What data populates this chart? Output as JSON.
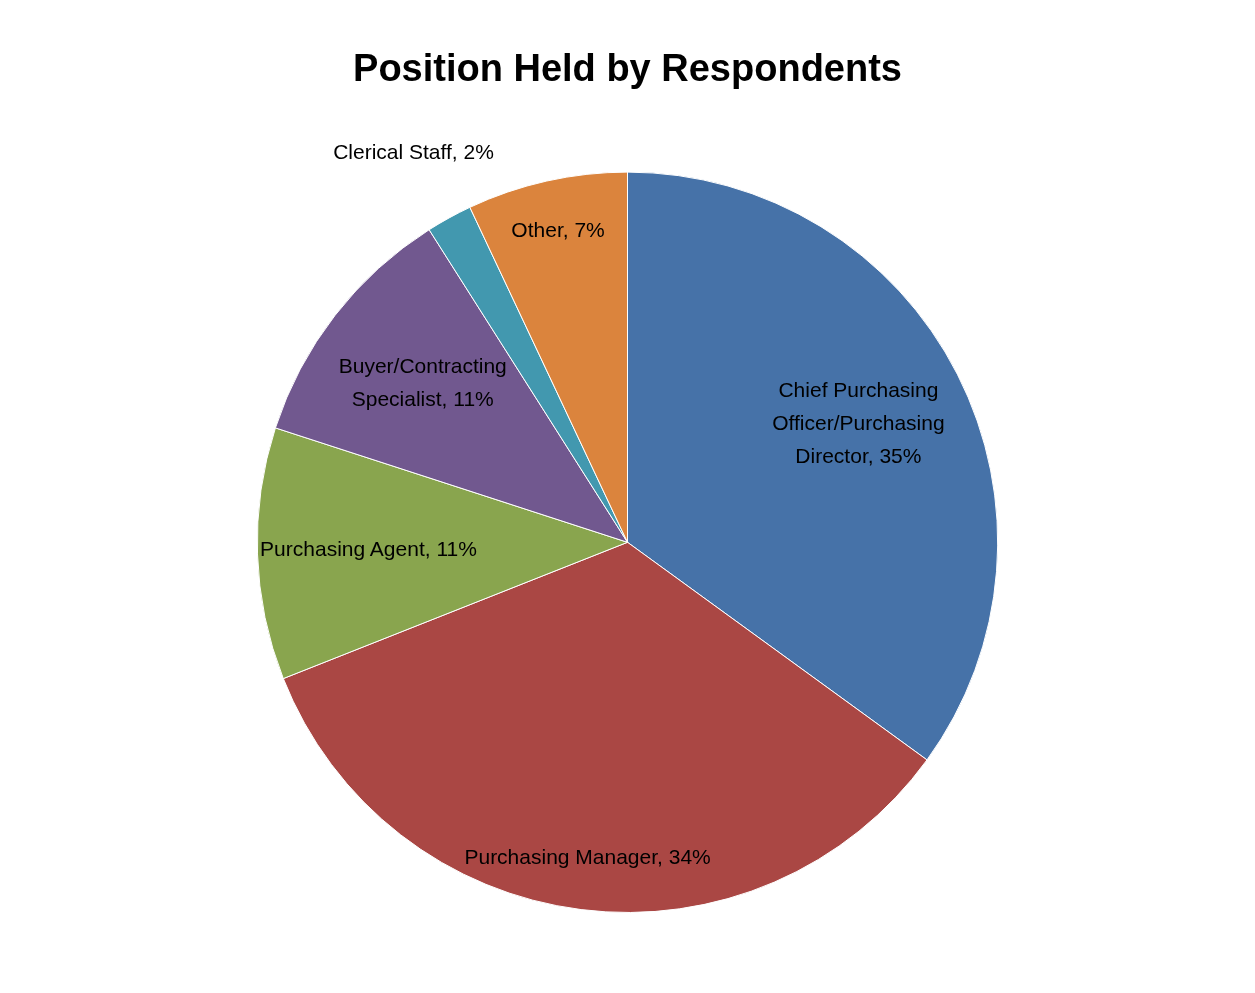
{
  "chart_data": {
    "type": "pie",
    "title": "Position Held by Respondents",
    "categories": [
      "Chief Purchasing Officer/Purchasing Director",
      "Purchasing Manager",
      "Purchasing Agent",
      "Buyer/Contracting Specialist",
      "Clerical Staff",
      "Other"
    ],
    "values": [
      35,
      34,
      11,
      11,
      2,
      7
    ],
    "value_labels": [
      "35%",
      "34%",
      "11%",
      "11%",
      "2%",
      "7%"
    ],
    "colors": [
      "#4672a8",
      "#aa4744",
      "#89a54e",
      "#71588f",
      "#4298af",
      "#db843d"
    ],
    "legend": false
  }
}
